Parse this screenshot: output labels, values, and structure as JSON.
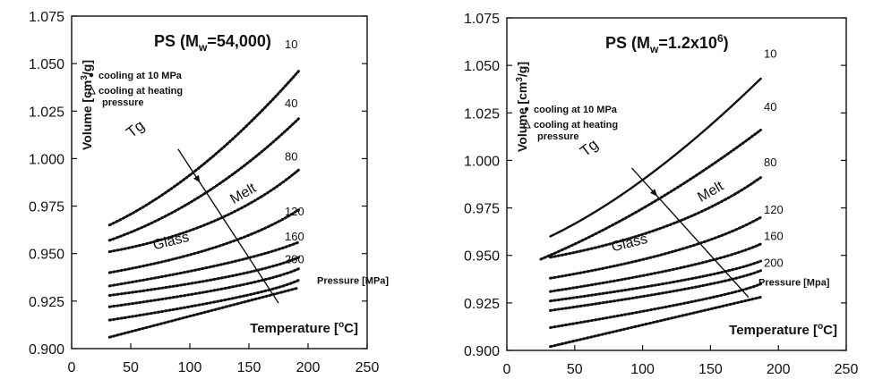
{
  "chart_data": [
    {
      "type": "scatter",
      "title": "PS (M",
      "title_sub": "w",
      "title_tail": "=54,000)",
      "xlabel": "Temperature [",
      "xlabel_sup": "o",
      "xlabel_tail": "C]",
      "ylabel": "Volume [cm",
      "ylabel_sup": "3",
      "ylabel_tail": "/g]",
      "xlim": [
        0,
        250
      ],
      "ylim": [
        0.9,
        1.075
      ],
      "x_ticks": [
        "0",
        "50",
        "100",
        "150",
        "200",
        "250"
      ],
      "y_ticks": [
        "0.900",
        "0.925",
        "0.950",
        "0.975",
        "1.000",
        "1.025",
        "1.050",
        "1.075"
      ],
      "legend": [
        "cooling at 10 MPa",
        "cooling at heating",
        "pressure"
      ],
      "pressure_labels": [
        "10",
        "40",
        "80",
        "120",
        "160",
        "200"
      ],
      "pressure_axis_label": "Pressure [MPa]",
      "annotations": {
        "tg": "Tg",
        "melt": "Melt",
        "glass": "Glass"
      },
      "series": [
        {
          "x": [
            32,
            110,
            192
          ],
          "y": [
            0.965,
            0.988,
            1.046
          ]
        },
        {
          "x": [
            32,
            115,
            192
          ],
          "y": [
            0.957,
            0.975,
            1.021
          ]
        },
        {
          "x": [
            32,
            130,
            192
          ],
          "y": [
            0.951,
            0.962,
            0.994
          ]
        },
        {
          "x": [
            32,
            140,
            192
          ],
          "y": [
            0.94,
            0.952,
            0.973
          ]
        },
        {
          "x": [
            32,
            148,
            192
          ],
          "y": [
            0.933,
            0.945,
            0.956
          ]
        },
        {
          "x": [
            32,
            155,
            192
          ],
          "y": [
            0.928,
            0.938,
            0.948
          ]
        },
        {
          "x": [
            32,
            160,
            192
          ],
          "y": [
            0.922,
            0.933,
            0.942
          ]
        },
        {
          "x": [
            32,
            165,
            192
          ],
          "y": [
            0.915,
            0.928,
            0.936
          ]
        },
        {
          "x": [
            32,
            192
          ],
          "y": [
            0.906,
            0.932
          ]
        }
      ],
      "tg_line": {
        "x": [
          90,
          175
        ],
        "y": [
          1.005,
          0.924
        ]
      }
    },
    {
      "type": "scatter",
      "title": "PS (M",
      "title_sub": "w",
      "title_tail": "=1.2x10",
      "title_sup": "6",
      "title_end": ")",
      "xlabel": "Temperature [",
      "xlabel_sup": "o",
      "xlabel_tail": "C]",
      "ylabel": "Volume [cm",
      "ylabel_sup": "3",
      "ylabel_tail": "/g]",
      "xlim": [
        0,
        250
      ],
      "ylim": [
        0.9,
        1.075
      ],
      "x_ticks": [
        "0",
        "50",
        "100",
        "150",
        "200",
        "250"
      ],
      "y_ticks": [
        "0.900",
        "0.925",
        "0.950",
        "0.975",
        "1.000",
        "1.025",
        "1.050",
        "1.075"
      ],
      "legend": [
        "cooling at 10 MPa",
        "cooling at heating",
        "pressure"
      ],
      "pressure_labels": [
        "10",
        "40",
        "80",
        "120",
        "160",
        "200"
      ],
      "pressure_axis_label": "Pressure [Mpa]",
      "annotations": {
        "tg": "Tg",
        "melt": "Melt",
        "glass": "Glass"
      },
      "series": [
        {
          "x": [
            32,
            102,
            187
          ],
          "y": [
            0.96,
            0.984,
            1.043
          ],
          "solid": true
        },
        {
          "x": [
            25,
            105,
            187
          ],
          "y": [
            0.948,
            0.972,
            1.016
          ]
        },
        {
          "x": [
            32,
            130,
            187
          ],
          "y": [
            0.949,
            0.962,
            0.991
          ]
        },
        {
          "x": [
            32,
            140,
            187
          ],
          "y": [
            0.938,
            0.951,
            0.97
          ]
        },
        {
          "x": [
            32,
            150,
            187
          ],
          "y": [
            0.931,
            0.944,
            0.956
          ]
        },
        {
          "x": [
            32,
            155,
            187
          ],
          "y": [
            0.926,
            0.938,
            0.947
          ]
        },
        {
          "x": [
            32,
            160,
            187
          ],
          "y": [
            0.921,
            0.934,
            0.942
          ]
        },
        {
          "x": [
            32,
            165,
            187
          ],
          "y": [
            0.912,
            0.928,
            0.935
          ]
        },
        {
          "x": [
            32,
            187
          ],
          "y": [
            0.902,
            0.928
          ]
        }
      ],
      "tg_line": {
        "x": [
          92,
          178
        ],
        "y": [
          0.996,
          0.928
        ]
      }
    }
  ]
}
